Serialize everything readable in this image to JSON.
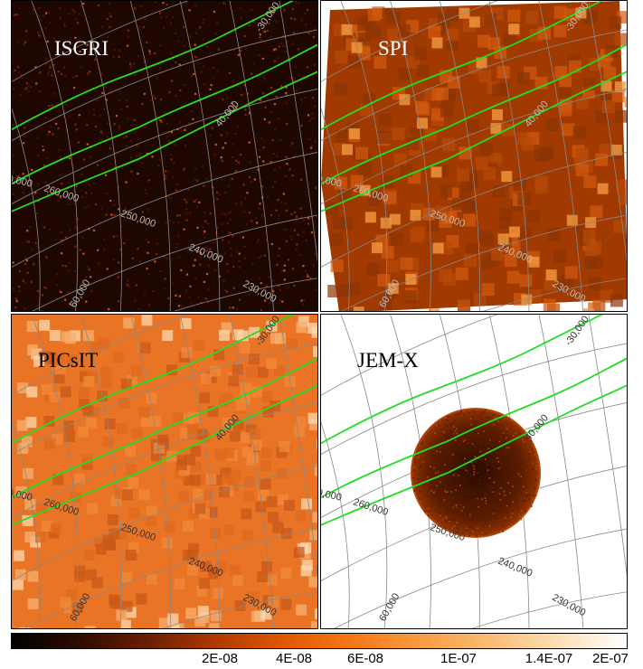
{
  "panels": [
    {
      "label": "ISGRI",
      "style": "isgri"
    },
    {
      "label": "SPI",
      "style": "spi"
    },
    {
      "label": "PICsIT",
      "style": "picsit"
    },
    {
      "label": "JEM-X",
      "style": "jemx"
    }
  ],
  "grid_labels": {
    "lon_270": "0,000",
    "lon_260": "260,000",
    "lon_250": "250,000",
    "lon_240": "240,000",
    "lon_230": "230,000",
    "lat_40": "40,000",
    "lat_30": "-30,000",
    "lat_60": "60,000"
  },
  "colorbar": {
    "ticks": [
      "2E-08",
      "4E-08",
      "6E-08",
      "1E-07",
      "1.4E-07",
      "2E-07"
    ]
  },
  "colors": {
    "contour": "#22dd22",
    "grid": "#888888",
    "isgri_bg": "#1e0700",
    "spi_bg": "#a03a00",
    "picsit_bg": "#ea7426",
    "jemx_disk": "#7a2a00"
  }
}
